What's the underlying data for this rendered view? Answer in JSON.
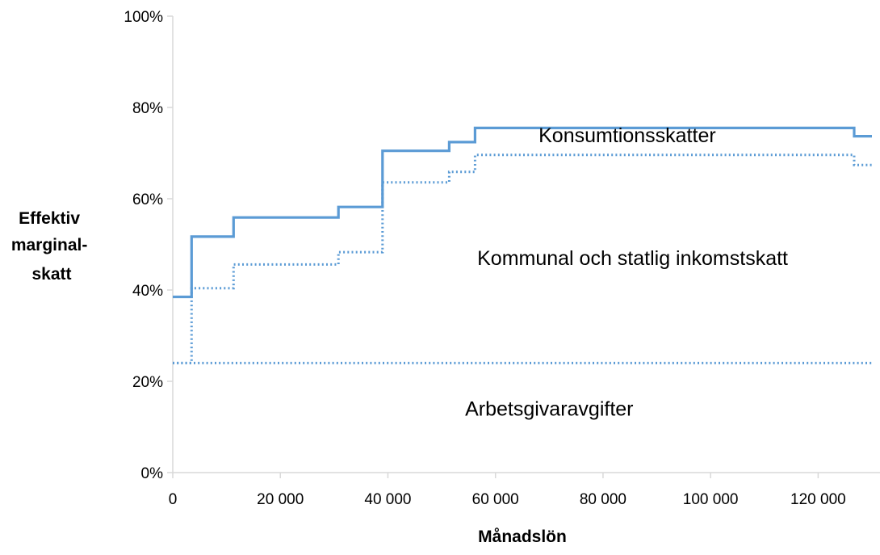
{
  "chart_data": {
    "type": "line",
    "title": "",
    "xlabel": "Månadslön",
    "ylabel_lines": [
      "Effektiv",
      "marginal-",
      "skatt"
    ],
    "xlim": [
      0,
      130000
    ],
    "ylim": [
      0,
      100
    ],
    "x_ticks": [
      0,
      20000,
      40000,
      60000,
      80000,
      100000,
      120000
    ],
    "x_tick_labels": [
      "0",
      "20 000",
      "40 000",
      "60 000",
      "80 000",
      "100 000",
      "120 000"
    ],
    "y_ticks": [
      0,
      20,
      40,
      60,
      80,
      100
    ],
    "y_tick_labels": [
      "0%",
      "20%",
      "40%",
      "60%",
      "80%",
      "100%"
    ],
    "grid": false,
    "legend": "none",
    "series": [
      {
        "style": "solid",
        "color": "#5b9bd5",
        "step_points": [
          [
            0,
            38.5
          ],
          [
            3500,
            38.5
          ],
          [
            3500,
            51.7
          ],
          [
            11300,
            51.7
          ],
          [
            11300,
            55.9
          ],
          [
            30800,
            55.9
          ],
          [
            30800,
            58.2
          ],
          [
            39000,
            58.2
          ],
          [
            39000,
            70.5
          ],
          [
            51400,
            70.5
          ],
          [
            51400,
            72.4
          ],
          [
            56200,
            72.4
          ],
          [
            56200,
            75.5
          ],
          [
            126700,
            75.5
          ],
          [
            126700,
            73.7
          ],
          [
            130000,
            73.7
          ]
        ]
      },
      {
        "style": "dotted",
        "color": "#5b9bd5",
        "step_points": [
          [
            0,
            24
          ],
          [
            3500,
            24
          ],
          [
            3500,
            40.4
          ],
          [
            11300,
            40.4
          ],
          [
            11300,
            45.6
          ],
          [
            30800,
            45.6
          ],
          [
            30800,
            48.3
          ],
          [
            39000,
            48.3
          ],
          [
            39000,
            63.6
          ],
          [
            51400,
            63.6
          ],
          [
            51400,
            65.9
          ],
          [
            56200,
            65.9
          ],
          [
            56200,
            69.6
          ],
          [
            126700,
            69.6
          ],
          [
            126700,
            67.4
          ],
          [
            130000,
            67.4
          ]
        ]
      },
      {
        "style": "dotted",
        "color": "#5b9bd5",
        "step_points": [
          [
            0,
            24
          ],
          [
            130000,
            24
          ]
        ]
      }
    ],
    "annotations": [
      {
        "text": "Konsumtionsskatter",
        "x": 84500,
        "y": 72.4
      },
      {
        "text": "Kommunal och statlig inkomstskatt",
        "x": 85500,
        "y": 45.5
      },
      {
        "text": "Arbetsgivaravgifter",
        "x": 70000,
        "y": 12.5
      }
    ]
  }
}
